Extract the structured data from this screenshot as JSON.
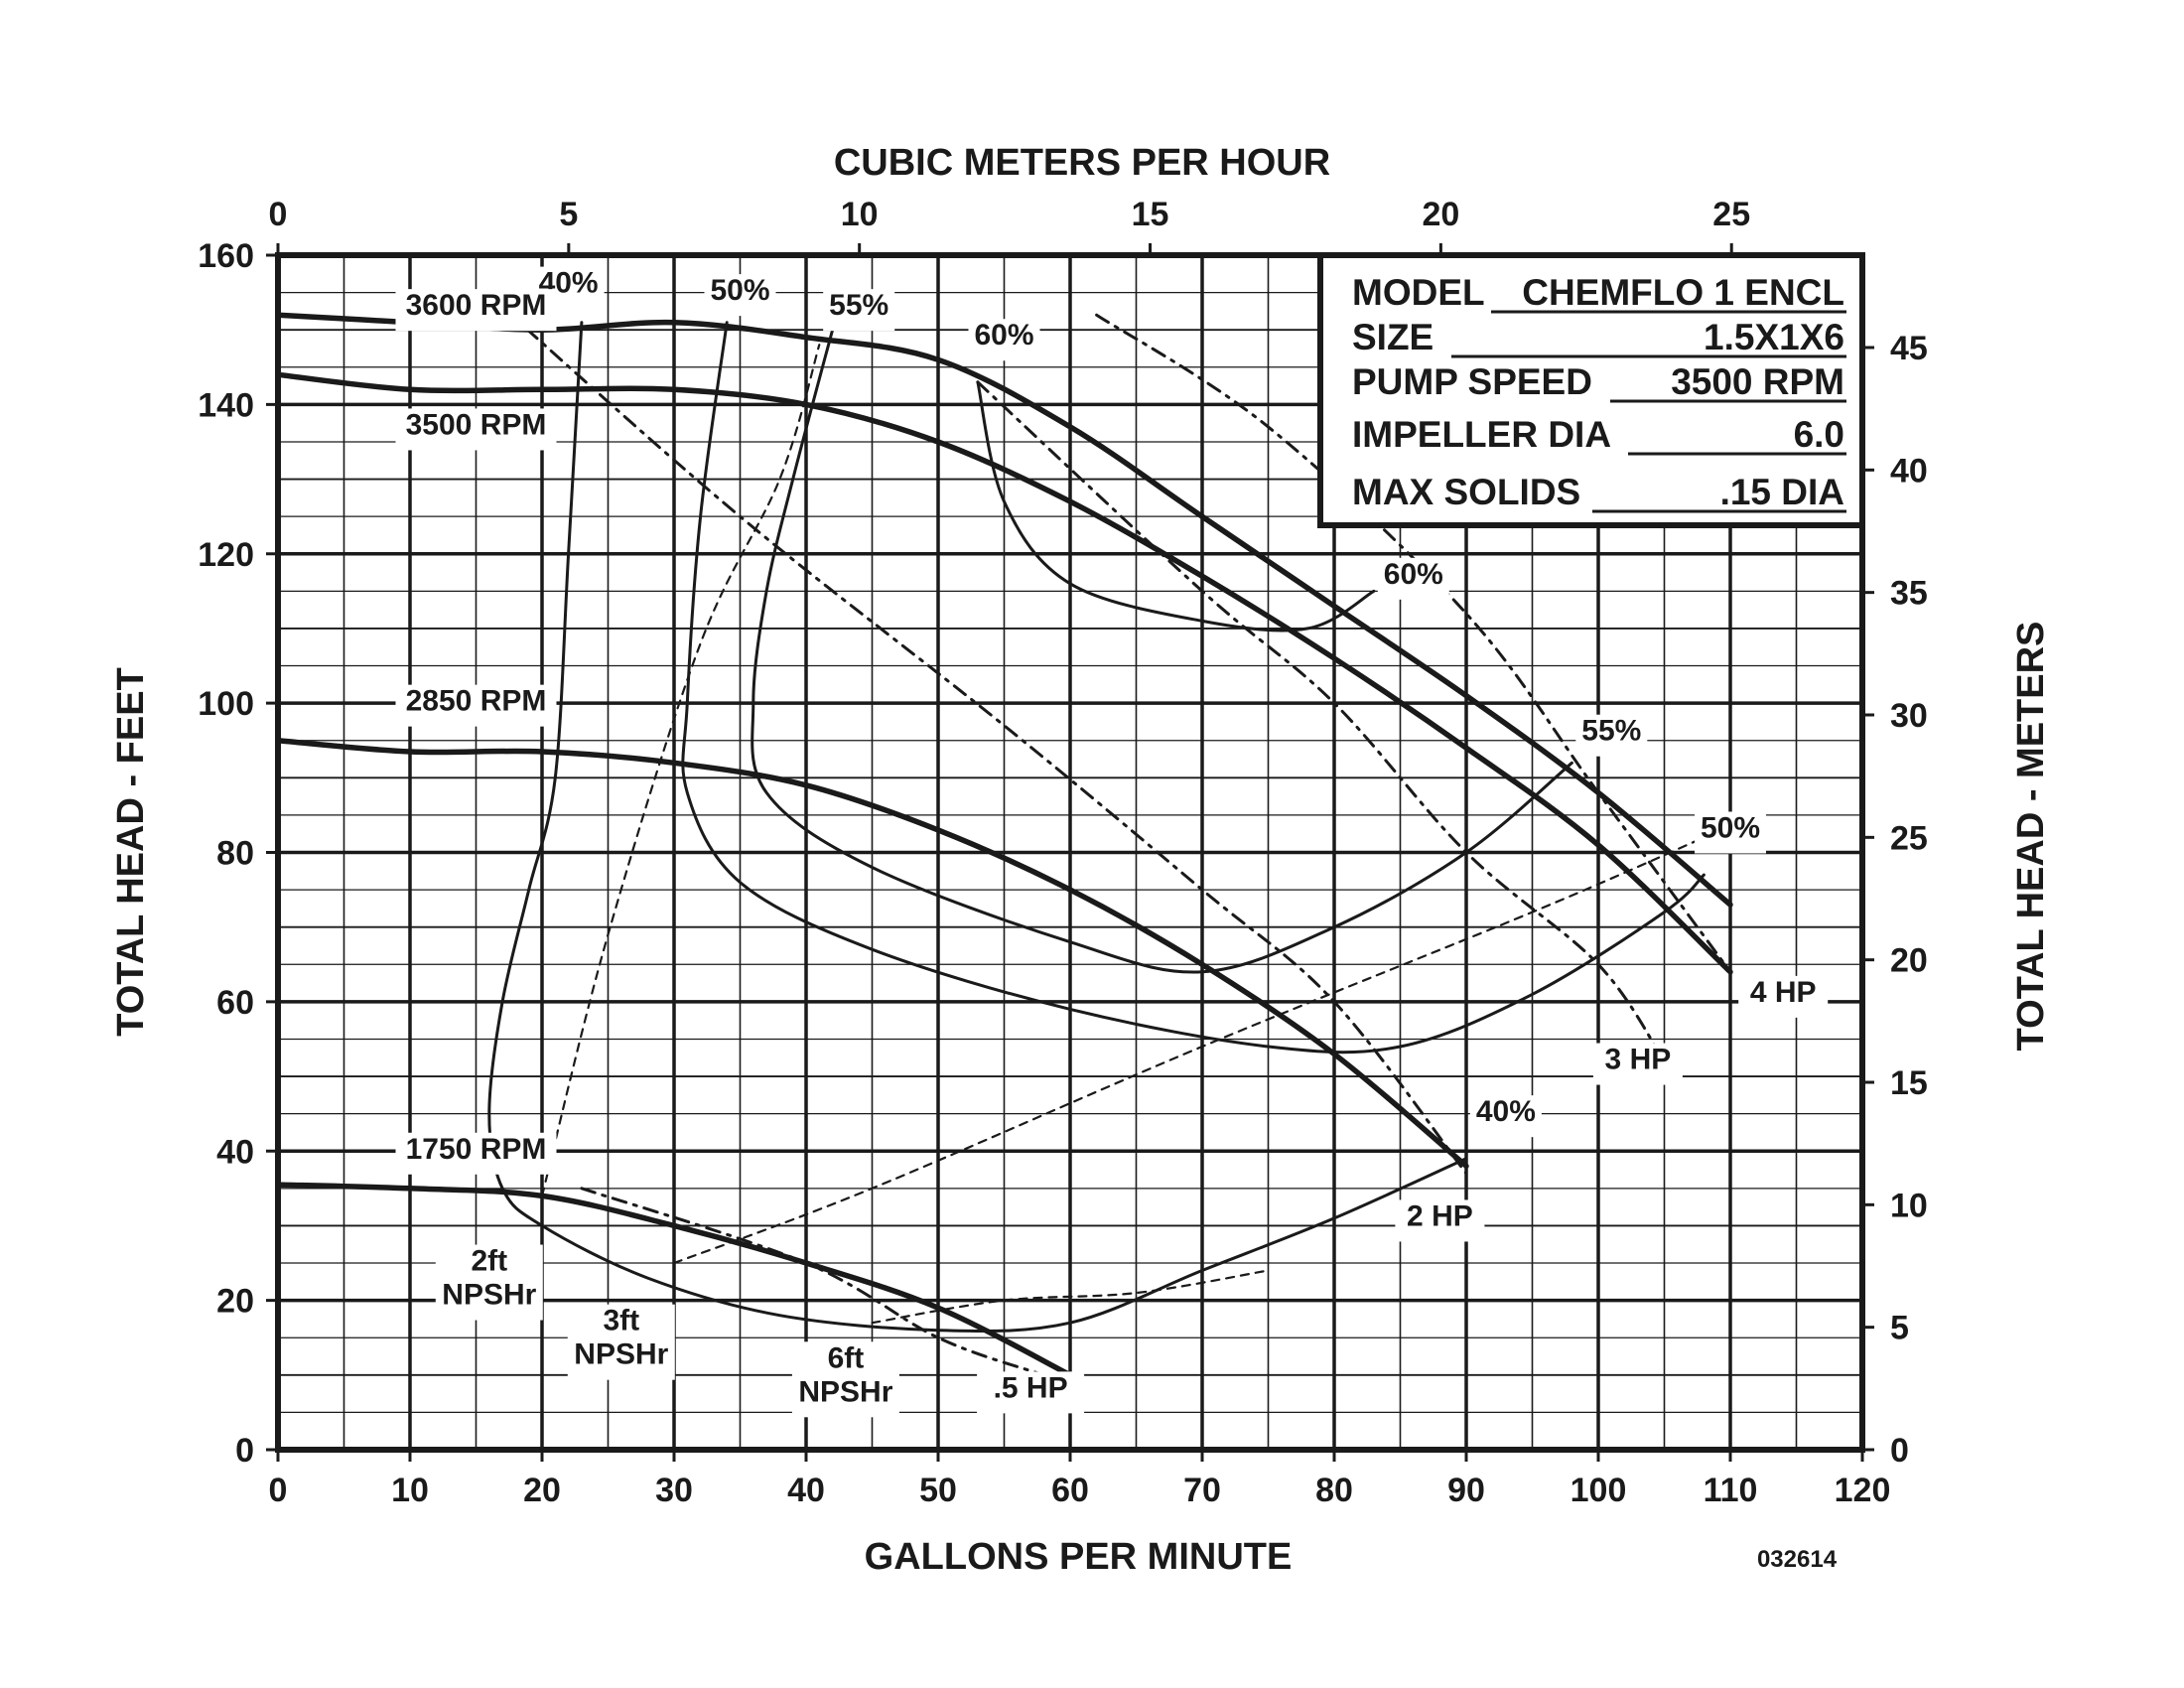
{
  "chart_data": {
    "type": "line",
    "title": "",
    "xlabel": "GALLONS PER MINUTE",
    "ylabel": "TOTAL HEAD - FEET",
    "x2label": "CUBIC METERS PER HOUR",
    "y2label": "TOTAL HEAD - METERS",
    "xlim": [
      0,
      120
    ],
    "ylim": [
      0,
      160
    ],
    "x2lim": [
      0,
      27.25
    ],
    "y2lim": [
      0,
      48.77
    ],
    "x_ticks": [
      0,
      10,
      20,
      30,
      40,
      50,
      60,
      70,
      80,
      90,
      100,
      110,
      120
    ],
    "y_ticks": [
      0,
      20,
      40,
      60,
      80,
      100,
      120,
      140,
      160
    ],
    "x2_ticks": [
      0,
      5,
      10,
      15,
      20,
      25
    ],
    "y2_ticks": [
      0,
      5,
      10,
      15,
      20,
      25,
      30,
      35,
      40,
      45
    ],
    "grid": true,
    "doc_code": "032614",
    "info_box": {
      "model_label": "MODEL",
      "model_value": "CHEMFLO 1 ENCL",
      "size_label": "SIZE",
      "size_value": "1.5X1X6",
      "speed_label": "PUMP SPEED",
      "speed_value": "3500 RPM",
      "impeller_label": "IMPELLER DIA",
      "impeller_value": "6.0",
      "solids_label": "MAX SOLIDS",
      "solids_value": ".15 DIA"
    },
    "speed_curves": [
      {
        "label": "3600 RPM",
        "label_at": [
          15,
          152
        ],
        "points": [
          [
            0,
            152
          ],
          [
            10,
            151
          ],
          [
            20,
            150
          ],
          [
            30,
            151
          ],
          [
            40,
            149
          ],
          [
            50,
            146
          ],
          [
            60,
            137
          ],
          [
            70,
            125
          ],
          [
            80,
            113
          ],
          [
            90,
            101
          ],
          [
            100,
            88
          ],
          [
            110,
            73
          ]
        ]
      },
      {
        "label": "3500 RPM",
        "label_at": [
          15,
          136
        ],
        "points": [
          [
            0,
            144
          ],
          [
            10,
            142
          ],
          [
            20,
            142
          ],
          [
            30,
            142
          ],
          [
            40,
            140
          ],
          [
            50,
            135
          ],
          [
            60,
            127
          ],
          [
            70,
            117
          ],
          [
            80,
            106
          ],
          [
            90,
            94
          ],
          [
            100,
            81
          ],
          [
            110,
            64
          ]
        ]
      },
      {
        "label": "2850 RPM",
        "label_at": [
          15,
          99
        ],
        "points": [
          [
            0,
            95
          ],
          [
            10,
            93.5
          ],
          [
            20,
            93.5
          ],
          [
            30,
            92
          ],
          [
            40,
            89
          ],
          [
            50,
            83
          ],
          [
            60,
            75
          ],
          [
            70,
            65
          ],
          [
            80,
            53
          ],
          [
            90,
            38
          ]
        ]
      },
      {
        "label": "1750 RPM",
        "label_at": [
          15,
          39
        ],
        "points": [
          [
            0,
            35.5
          ],
          [
            10,
            35
          ],
          [
            20,
            34
          ],
          [
            30,
            30
          ],
          [
            40,
            25
          ],
          [
            50,
            19
          ],
          [
            60,
            10
          ]
        ]
      }
    ],
    "efficiency_curves": [
      {
        "label": "40%",
        "label_at": [
          22,
          155
        ],
        "points": [
          [
            23,
            151
          ],
          [
            22,
            120
          ],
          [
            21,
            90
          ],
          [
            19,
            75
          ],
          [
            17,
            60
          ],
          [
            16,
            45
          ],
          [
            17,
            35
          ],
          [
            20,
            30
          ],
          [
            28,
            23
          ],
          [
            38,
            18
          ],
          [
            50,
            16
          ],
          [
            60,
            17
          ],
          [
            70,
            24
          ],
          [
            80,
            31
          ],
          [
            90,
            39
          ]
        ]
      },
      {
        "label": "40%",
        "label_at": [
          93,
          44
        ],
        "points": []
      },
      {
        "label": "50%",
        "label_at": [
          35,
          154
        ],
        "points": [
          [
            34,
            151
          ],
          [
            32,
            125
          ],
          [
            31,
            100
          ],
          [
            31,
            88
          ],
          [
            35,
            76
          ],
          [
            45,
            67
          ],
          [
            60,
            59
          ],
          [
            75,
            54
          ],
          [
            85,
            54
          ],
          [
            95,
            61
          ],
          [
            105,
            72
          ],
          [
            108,
            77
          ]
        ]
      },
      {
        "label": "50%",
        "label_at": [
          110,
          82
        ],
        "points": []
      },
      {
        "label": "55%",
        "label_at": [
          44,
          152
        ],
        "points": [
          [
            42,
            150
          ],
          [
            39,
            130
          ],
          [
            37,
            115
          ],
          [
            36,
            100
          ],
          [
            37,
            88
          ],
          [
            45,
            78
          ],
          [
            60,
            68
          ],
          [
            70,
            64
          ],
          [
            80,
            70
          ],
          [
            90,
            80
          ],
          [
            98,
            92
          ]
        ]
      },
      {
        "label": "55%",
        "label_at": [
          101,
          95
        ],
        "points": []
      },
      {
        "label": "60%",
        "label_at": [
          55,
          148
        ],
        "points": [
          [
            53,
            143
          ],
          [
            55,
            127
          ],
          [
            60,
            116
          ],
          [
            70,
            111
          ],
          [
            78,
            110
          ],
          [
            83,
            115
          ]
        ]
      },
      {
        "label": "60%",
        "label_at": [
          86,
          116
        ],
        "points": []
      }
    ],
    "power_curves": [
      {
        "label": "4 HP",
        "label_at": [
          114,
          60
        ],
        "points": [
          [
            62,
            152
          ],
          [
            75,
            137
          ],
          [
            90,
            112
          ],
          [
            100,
            88
          ],
          [
            110,
            64
          ]
        ]
      },
      {
        "label": "3 HP",
        "label_at": [
          103,
          51
        ],
        "points": [
          [
            53,
            143
          ],
          [
            70,
            115
          ],
          [
            80,
            100
          ],
          [
            90,
            80
          ],
          [
            100,
            65
          ],
          [
            105,
            52
          ]
        ]
      },
      {
        "label": "2 HP",
        "label_at": [
          88,
          30
        ],
        "points": [
          [
            17,
            153
          ],
          [
            35,
            125
          ],
          [
            55,
            97
          ],
          [
            70,
            75
          ],
          [
            80,
            60
          ],
          [
            90,
            37
          ]
        ]
      },
      {
        "label": ".5 HP",
        "label_at": [
          57,
          7
        ],
        "points": [
          [
            23,
            35
          ],
          [
            40,
            25
          ],
          [
            50,
            15
          ],
          [
            58,
            10
          ]
        ]
      }
    ],
    "npshr_curves": [
      {
        "label": "2ft\nNPSHr",
        "label_at": [
          16,
          24
        ],
        "points": [
          [
            20,
            34
          ],
          [
            25,
            69
          ],
          [
            32,
            108
          ],
          [
            38,
            130
          ],
          [
            41,
            148
          ]
        ]
      },
      {
        "label": "3ft\nNPSHr",
        "label_at": [
          26,
          16
        ],
        "points": [
          [
            30,
            25
          ],
          [
            45,
            35
          ],
          [
            70,
            54
          ],
          [
            95,
            72
          ],
          [
            108,
            82
          ]
        ]
      },
      {
        "label": "6ft\nNPSHr",
        "label_at": [
          43,
          11
        ],
        "points": [
          [
            45,
            17
          ],
          [
            55,
            20
          ],
          [
            65,
            21
          ],
          [
            75,
            24
          ]
        ]
      }
    ]
  }
}
